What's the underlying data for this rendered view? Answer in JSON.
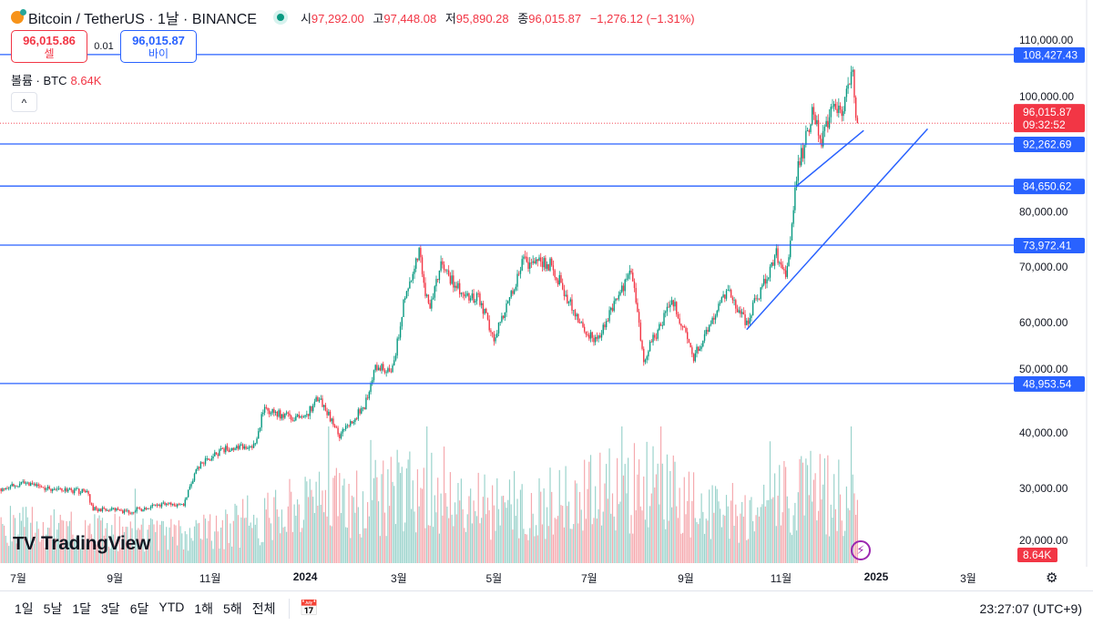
{
  "header": {
    "symbol_title": "Bitcoin / TetherUS · 1날 · BINANCE",
    "market_status": "open",
    "ohlc": [
      {
        "label": "시",
        "value": "97,292.00"
      },
      {
        "label": "고",
        "value": "97,448.08"
      },
      {
        "label": "저",
        "value": "95,890.28"
      },
      {
        "label": "종",
        "value": "96,015.87"
      }
    ],
    "change": "−1,276.12 (−1.31%)"
  },
  "trade": {
    "sell_price": "96,015.86",
    "sell_label": "셀",
    "spread": "0.01",
    "buy_price": "96,015.87",
    "buy_label": "바이"
  },
  "volume_legend": {
    "label": "볼륨 · BTC",
    "value": "8.64K"
  },
  "collapse_label": "^",
  "logo_text": "TradingView",
  "colors": {
    "up": "#089981",
    "down": "#f23645",
    "lines": "#2962ff",
    "alert": "#9c27b0"
  },
  "chart_data": {
    "type": "candlestick",
    "interval": "1D",
    "y_scale": "linear",
    "ylim": [
      16000,
      114000
    ],
    "y_ticks": [
      "110,000.00",
      "100,000.00",
      "80,000.00",
      "70,000.00",
      "60,000.00",
      "50,000.00",
      "40,000.00",
      "30,000.00",
      "20,000.00"
    ],
    "y_tick_values": [
      110000,
      100000,
      80000,
      70000,
      60000,
      50000,
      40000,
      30000,
      20000
    ],
    "x_ticks": [
      {
        "label": "7월",
        "date": "2023-07-01"
      },
      {
        "label": "9월",
        "date": "2023-09-01"
      },
      {
        "label": "11월",
        "date": "2023-11-01"
      },
      {
        "label": "2024",
        "date": "2024-01-01",
        "year": true
      },
      {
        "label": "3월",
        "date": "2024-03-01"
      },
      {
        "label": "5월",
        "date": "2024-05-01"
      },
      {
        "label": "7월",
        "date": "2024-07-01"
      },
      {
        "label": "9월",
        "date": "2024-09-01"
      },
      {
        "label": "11월",
        "date": "2024-11-01"
      },
      {
        "label": "2025",
        "date": "2025-01-01",
        "year": true
      },
      {
        "label": "3월",
        "date": "2025-03-01"
      }
    ],
    "close_path": [
      [
        "2023-06-20",
        30000
      ],
      [
        "2023-07-05",
        30800
      ],
      [
        "2023-07-20",
        30000
      ],
      [
        "2023-08-14",
        29300
      ],
      [
        "2023-08-18",
        26300
      ],
      [
        "2023-09-10",
        25800
      ],
      [
        "2023-09-30",
        27000
      ],
      [
        "2023-10-15",
        27000
      ],
      [
        "2023-10-24",
        34000
      ],
      [
        "2023-11-10",
        37000
      ],
      [
        "2023-11-30",
        37800
      ],
      [
        "2023-12-05",
        44000
      ],
      [
        "2023-12-31",
        42500
      ],
      [
        "2024-01-10",
        46500
      ],
      [
        "2024-01-23",
        39500
      ],
      [
        "2024-02-08",
        45000
      ],
      [
        "2024-02-15",
        52000
      ],
      [
        "2024-02-26",
        51500
      ],
      [
        "2024-03-04",
        63000
      ],
      [
        "2024-03-14",
        72500
      ],
      [
        "2024-03-20",
        62500
      ],
      [
        "2024-03-28",
        70500
      ],
      [
        "2024-04-13",
        64000
      ],
      [
        "2024-04-20",
        65000
      ],
      [
        "2024-05-01",
        57500
      ],
      [
        "2024-05-20",
        71000
      ],
      [
        "2024-06-07",
        70500
      ],
      [
        "2024-06-24",
        60000
      ],
      [
        "2024-07-05",
        56500
      ],
      [
        "2024-07-28",
        69000
      ],
      [
        "2024-08-05",
        53500
      ],
      [
        "2024-08-24",
        64000
      ],
      [
        "2024-09-06",
        53500
      ],
      [
        "2024-09-27",
        66000
      ],
      [
        "2024-10-10",
        60000
      ],
      [
        "2024-10-29",
        72500
      ],
      [
        "2024-11-04",
        68000
      ],
      [
        "2024-11-12",
        88000
      ],
      [
        "2024-11-22",
        98500
      ],
      [
        "2024-11-26",
        92000
      ],
      [
        "2024-12-05",
        99000
      ],
      [
        "2024-12-10",
        96500
      ],
      [
        "2024-12-17",
        106000
      ],
      [
        "2024-12-19",
        97500
      ],
      [
        "2024-12-20",
        96015.87
      ]
    ],
    "volume_level_path": [
      [
        "2023-06-20",
        35
      ],
      [
        "2023-10-20",
        25
      ],
      [
        "2023-12-05",
        45
      ],
      [
        "2024-03-10",
        70
      ],
      [
        "2024-05-01",
        50
      ],
      [
        "2024-08-05",
        75
      ],
      [
        "2024-10-01",
        40
      ],
      [
        "2024-11-15",
        75
      ],
      [
        "2024-12-20",
        55
      ]
    ],
    "current_price": {
      "value": 96015.87,
      "label": "96,015.87",
      "countdown": "09:32:52"
    },
    "current_volume_label": "8.64K",
    "horizontal_levels": [
      {
        "value": 108427.43,
        "label": "108,427.43"
      },
      {
        "value": 92262.69,
        "label": "92,262.69"
      },
      {
        "value": 84650.62,
        "label": "84,650.62"
      },
      {
        "value": 73972.41,
        "label": "73,972.41"
      },
      {
        "value": 48953.54,
        "label": "48,953.54"
      }
    ],
    "trend_lines": [
      {
        "from": [
          "2024-11-11",
          84650
        ],
        "to": [
          "2024-12-24",
          94700
        ]
      },
      {
        "from": [
          "2024-10-10",
          58700
        ],
        "to": [
          "2025-02-03",
          95000
        ]
      }
    ]
  },
  "bottom_bar": {
    "ranges": [
      "1일",
      "5날",
      "1달",
      "3달",
      "6달",
      "YTD",
      "1해",
      "5해",
      "전체"
    ],
    "clock": "23:27:07 (UTC+9)"
  }
}
